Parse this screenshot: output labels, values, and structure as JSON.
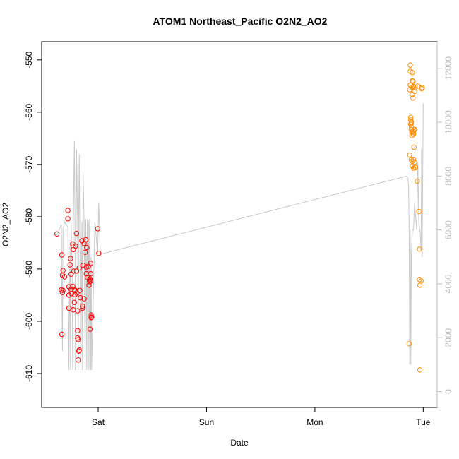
{
  "chart_data": {
    "type": "scatter",
    "title": "ATOM1 Northeast_Pacific O2N2_AO2",
    "xlabel": "Date",
    "ylabel": "O2N2_AO2",
    "xlim": [
      -0.45,
      3.05
    ],
    "x_ticks": [
      {
        "value": 0,
        "label": "Sat"
      },
      {
        "value": 1,
        "label": "Sun"
      },
      {
        "value": 2,
        "label": "Mon"
      },
      {
        "value": 3,
        "label": "Tue"
      }
    ],
    "ylim": [
      -615,
      -548
    ],
    "y_ticks": [
      -610,
      -600,
      -590,
      -580,
      -570,
      -560,
      -550
    ],
    "y2lim": [
      -300,
      12700
    ],
    "y2_ticks": [
      0,
      2000,
      4000,
      6000,
      8000,
      10000,
      12000
    ],
    "grid": false,
    "colors": {
      "series_red": "#ff0000",
      "series_orange": "#ff8c00",
      "secondary_line": "#c8c8c8",
      "right_axis": "#bdbdbd"
    },
    "series": [
      {
        "color": "#ff0000",
        "x": [
          -0.38,
          -0.34,
          -0.335,
          -0.335,
          -0.33,
          -0.33,
          -0.325,
          -0.325,
          -0.31,
          -0.28,
          -0.28,
          -0.27,
          -0.27,
          -0.27,
          -0.26,
          -0.255,
          -0.25,
          -0.25,
          -0.245,
          -0.235,
          -0.235,
          -0.23,
          -0.23,
          -0.225,
          -0.22,
          -0.22,
          -0.215,
          -0.21,
          -0.21,
          -0.2,
          -0.2,
          -0.195,
          -0.19,
          -0.19,
          -0.19,
          -0.185,
          -0.185,
          -0.18,
          -0.175,
          -0.175,
          -0.17,
          -0.165,
          -0.15,
          -0.145,
          -0.145,
          -0.14,
          -0.13,
          -0.13,
          -0.12,
          -0.115,
          -0.11,
          -0.11,
          -0.105,
          -0.1,
          -0.09,
          -0.085,
          -0.08,
          -0.08,
          -0.075,
          -0.075,
          -0.07,
          -0.07,
          -0.07,
          -0.065,
          -0.065,
          -0.06,
          -0.005,
          0.005
        ],
        "y": [
          -583.3,
          -594.0,
          -587.3,
          -602.5,
          -594.5,
          -591.2,
          -590.3,
          -594.1,
          -591.5,
          -578.8,
          -580.4,
          -593.4,
          -595.0,
          -597.5,
          -589.2,
          -588.0,
          -591.0,
          -593.9,
          -594.7,
          -593.3,
          -585.2,
          -586.3,
          -597.8,
          -590.4,
          -593.9,
          -596.4,
          -594.9,
          -585.6,
          -594.1,
          -583.2,
          -590.4,
          -594.6,
          -598.0,
          -601.8,
          -603.2,
          -607.4,
          -603.5,
          -605.7,
          -605.5,
          -589.8,
          -594.1,
          -595.5,
          -584.6,
          -597.5,
          -597.1,
          -589.3,
          -595.7,
          -585.1,
          -586.8,
          -584.4,
          -590.9,
          -589.6,
          -585.9,
          -591.6,
          -589.5,
          -593.1,
          -592.4,
          -592.1,
          -601.5,
          -591.9,
          -590.9,
          -588.9,
          -592.3,
          -599.3,
          -598.8,
          -599.2,
          -582.3,
          -587.0
        ]
      },
      {
        "color": "#ff8c00",
        "x": [
          2.87,
          2.875,
          2.875,
          2.88,
          2.88,
          2.88,
          2.885,
          2.885,
          2.885,
          2.89,
          2.89,
          2.89,
          2.89,
          2.89,
          2.895,
          2.895,
          2.895,
          2.9,
          2.9,
          2.9,
          2.9,
          2.9,
          2.905,
          2.905,
          2.905,
          2.905,
          2.91,
          2.91,
          2.91,
          2.91,
          2.91,
          2.915,
          2.915,
          2.92,
          2.92,
          2.92,
          2.925,
          2.925,
          2.93,
          2.945,
          2.95,
          2.96,
          2.965,
          2.965,
          2.97,
          2.97,
          2.98,
          2.985,
          2.99
        ],
        "y": [
          -604.3,
          -568.2,
          -555.7,
          -551.0,
          -552.2,
          -554.8,
          -561.5,
          -562.3,
          -561.0,
          -561.9,
          -562.8,
          -563.3,
          -562.1,
          -569.1,
          -555.2,
          -564.5,
          -563.8,
          -556.6,
          -570.3,
          -552.4,
          -554.0,
          -569.4,
          -557.3,
          -563.6,
          -564.1,
          -554.1,
          -555.1,
          -564.2,
          -563.8,
          -569.1,
          -570.7,
          -566.7,
          -563.4,
          -569.6,
          -563.3,
          -556.0,
          -570.5,
          -555.2,
          -570.6,
          -573.2,
          -555.0,
          -579.0,
          -586.2,
          -592.0,
          -593.1,
          -609.3,
          -592.3,
          -555.5,
          -555.3
        ]
      },
      {
        "name": "",
        "color": "#c8c8c8",
        "style": "line",
        "axis": "right",
        "x": [
          -0.38,
          -0.34,
          -0.335,
          -0.33,
          -0.325,
          -0.31,
          -0.28,
          -0.27,
          -0.26,
          -0.255,
          -0.25,
          -0.24,
          -0.235,
          -0.23,
          -0.22,
          -0.215,
          -0.21,
          -0.2,
          -0.19,
          -0.185,
          -0.18,
          -0.175,
          -0.17,
          -0.16,
          -0.15,
          -0.145,
          -0.14,
          -0.13,
          -0.12,
          -0.115,
          -0.11,
          -0.105,
          -0.1,
          -0.09,
          -0.085,
          -0.08,
          -0.075,
          -0.07,
          -0.065,
          -0.06,
          -0.03,
          -0.005,
          0.005,
          0.02,
          2.85,
          2.86,
          2.865,
          2.87,
          2.875,
          2.88,
          2.885,
          2.89,
          2.9,
          2.91,
          2.92,
          2.94,
          2.95,
          2.96,
          2.97,
          2.98,
          2.985,
          2.99,
          3.0
        ],
        "y": [
          5800,
          6200,
          4000,
          1500,
          6000,
          6300,
          6100,
          800,
          5500,
          800,
          6300,
          4500,
          800,
          6200,
          9300,
          6500,
          800,
          9000,
          6300,
          800,
          6300,
          8800,
          6000,
          800,
          6300,
          800,
          8200,
          6300,
          800,
          6400,
          5000,
          800,
          6400,
          6300,
          800,
          6400,
          6300,
          800,
          5000,
          800,
          6300,
          5100,
          7000,
          5100,
          8000,
          7900,
          7600,
          6000,
          1000,
          6000,
          1000,
          5000,
          6000,
          6000,
          7000,
          6000,
          8500,
          6200,
          6000,
          5200,
          9000,
          5000,
          10700
        ]
      }
    ]
  }
}
